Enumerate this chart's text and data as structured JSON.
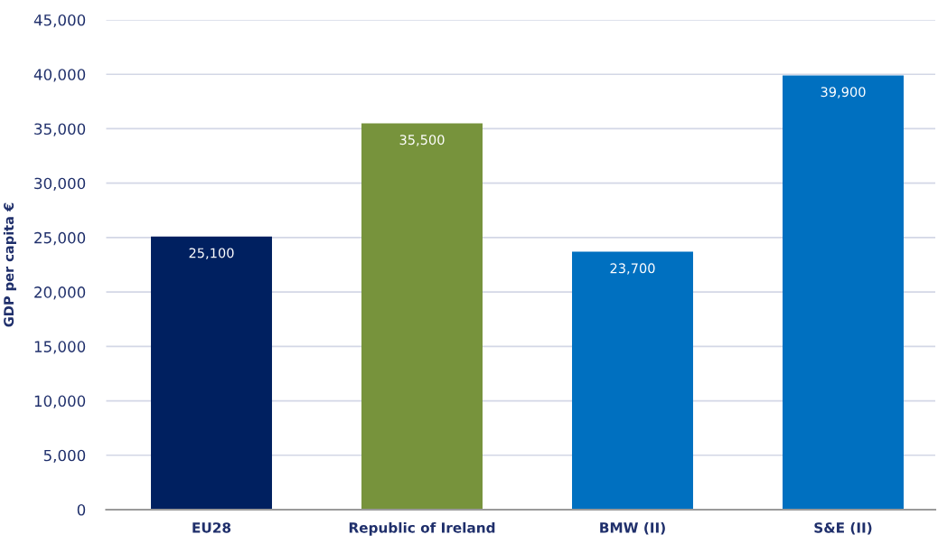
{
  "chart_data": {
    "type": "bar",
    "ylabel": "GDP per capita €",
    "categories": [
      "EU28",
      "Republic of Ireland",
      "BMW (II)",
      "S&E (II)"
    ],
    "values": [
      25100,
      35500,
      23700,
      39900
    ],
    "colors": [
      "#002060",
      "#77933c",
      "#0070c0",
      "#0070c0"
    ],
    "value_labels": [
      "25,100",
      "35,500",
      "23,700",
      "39,900"
    ],
    "ylim": [
      0,
      45000
    ],
    "yticks": [
      0,
      {
        "value": 5000,
        "label": "5,000"
      },
      {
        "value": 10000,
        "label": "10,000"
      },
      {
        "value": 15000,
        "label": "15,000"
      },
      {
        "value": 20000,
        "label": "20,000"
      },
      {
        "value": 25000,
        "label": "25,000"
      },
      {
        "value": 30000,
        "label": "30,000"
      },
      {
        "value": 35000,
        "label": "35,000"
      },
      {
        "value": 40000,
        "label": "40,000"
      },
      {
        "value": 45000,
        "label": "45,000"
      }
    ],
    "grid": "y"
  }
}
